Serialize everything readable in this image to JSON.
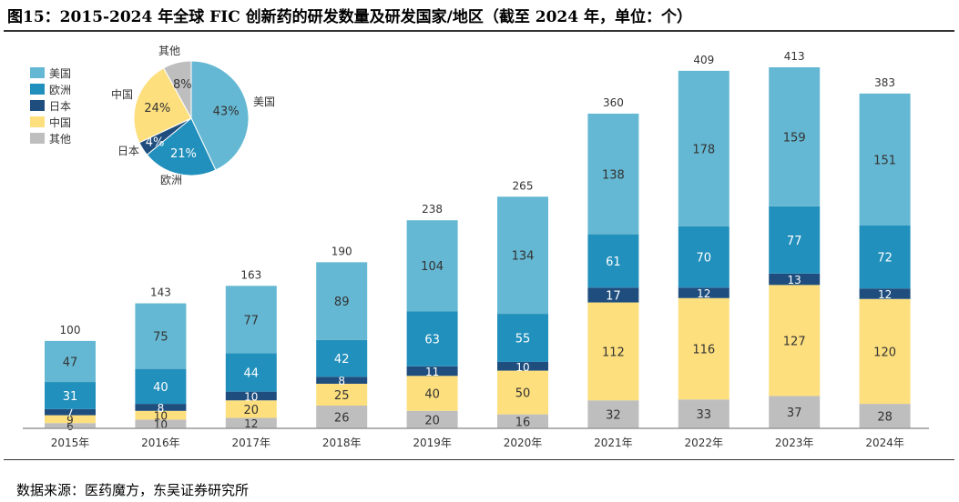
{
  "title": "图15：2015-2024 年全球 FIC 创新药的研发数量及研发国家/地区（截至 2024 年，单位：个）",
  "source": "数据来源：医药魔方，东吴证券研究所",
  "chart_data": [
    {
      "type": "bar",
      "stacked": true,
      "categories": [
        "2015年",
        "2016年",
        "2017年",
        "2018年",
        "2019年",
        "2020年",
        "2021年",
        "2022年",
        "2023年",
        "2024年"
      ],
      "series": [
        {
          "name": "其他",
          "color": "#BEBEBE",
          "values": [
            6,
            10,
            12,
            26,
            20,
            16,
            32,
            33,
            37,
            28
          ]
        },
        {
          "name": "中国",
          "color": "#FDDF7E",
          "values": [
            9,
            10,
            20,
            25,
            40,
            50,
            112,
            116,
            127,
            120
          ]
        },
        {
          "name": "日本",
          "color": "#1F4E7E",
          "values": [
            7,
            8,
            10,
            8,
            11,
            10,
            17,
            12,
            13,
            12
          ]
        },
        {
          "name": "欧洲",
          "color": "#2290BC",
          "values": [
            31,
            40,
            44,
            42,
            63,
            55,
            61,
            70,
            77,
            72
          ]
        },
        {
          "name": "美国",
          "color": "#65B8D3",
          "values": [
            47,
            75,
            77,
            89,
            104,
            134,
            138,
            178,
            159,
            151
          ]
        }
      ],
      "totals": [
        100,
        143,
        163,
        190,
        238,
        265,
        360,
        409,
        413,
        383
      ],
      "legend_order": [
        "美国",
        "欧洲",
        "日本",
        "中国",
        "其他"
      ],
      "legend": "top-left",
      "ylim": [
        0,
        413
      ],
      "grid": false
    },
    {
      "type": "pie",
      "slices": [
        {
          "name": "美国",
          "value": 43,
          "label": "43%",
          "color": "#65B8D3"
        },
        {
          "name": "欧洲",
          "value": 21,
          "label": "21%",
          "color": "#2290BC"
        },
        {
          "name": "日本",
          "value": 4,
          "label": "4%",
          "color": "#1F4E7E"
        },
        {
          "name": "中国",
          "value": 24,
          "label": "24%",
          "color": "#FDDF7E"
        },
        {
          "name": "其他",
          "value": 8,
          "label": "8%",
          "color": "#BEBEBE"
        }
      ]
    }
  ]
}
